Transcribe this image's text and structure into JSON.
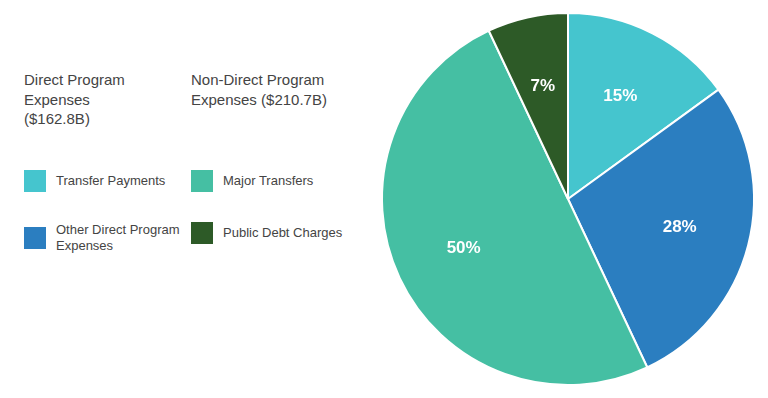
{
  "chart_data": {
    "type": "pie",
    "categories": [
      "Transfer Payments",
      "Other Direct Program\nExpenses",
      "Major Transfers",
      "Public Debt Charges"
    ],
    "values": [
      15,
      28,
      50,
      7
    ],
    "value_labels": [
      "15%",
      "28%",
      "50%",
      "7%"
    ],
    "colors": [
      "#45C5CE",
      "#2B7EC0",
      "#45BFA3",
      "#2D5A27"
    ],
    "data_labels": true,
    "legend": "left",
    "legend_groups": [
      {
        "title": "Direct Program\nExpenses\n($162.8B)",
        "categories": [
          "Transfer Payments",
          "Other Direct Program\nExpenses"
        ]
      },
      {
        "title": "Non-Direct Program\nExpenses ($210.7B)",
        "categories": [
          "Major Transfers",
          "Public Debt Charges"
        ]
      }
    ]
  }
}
